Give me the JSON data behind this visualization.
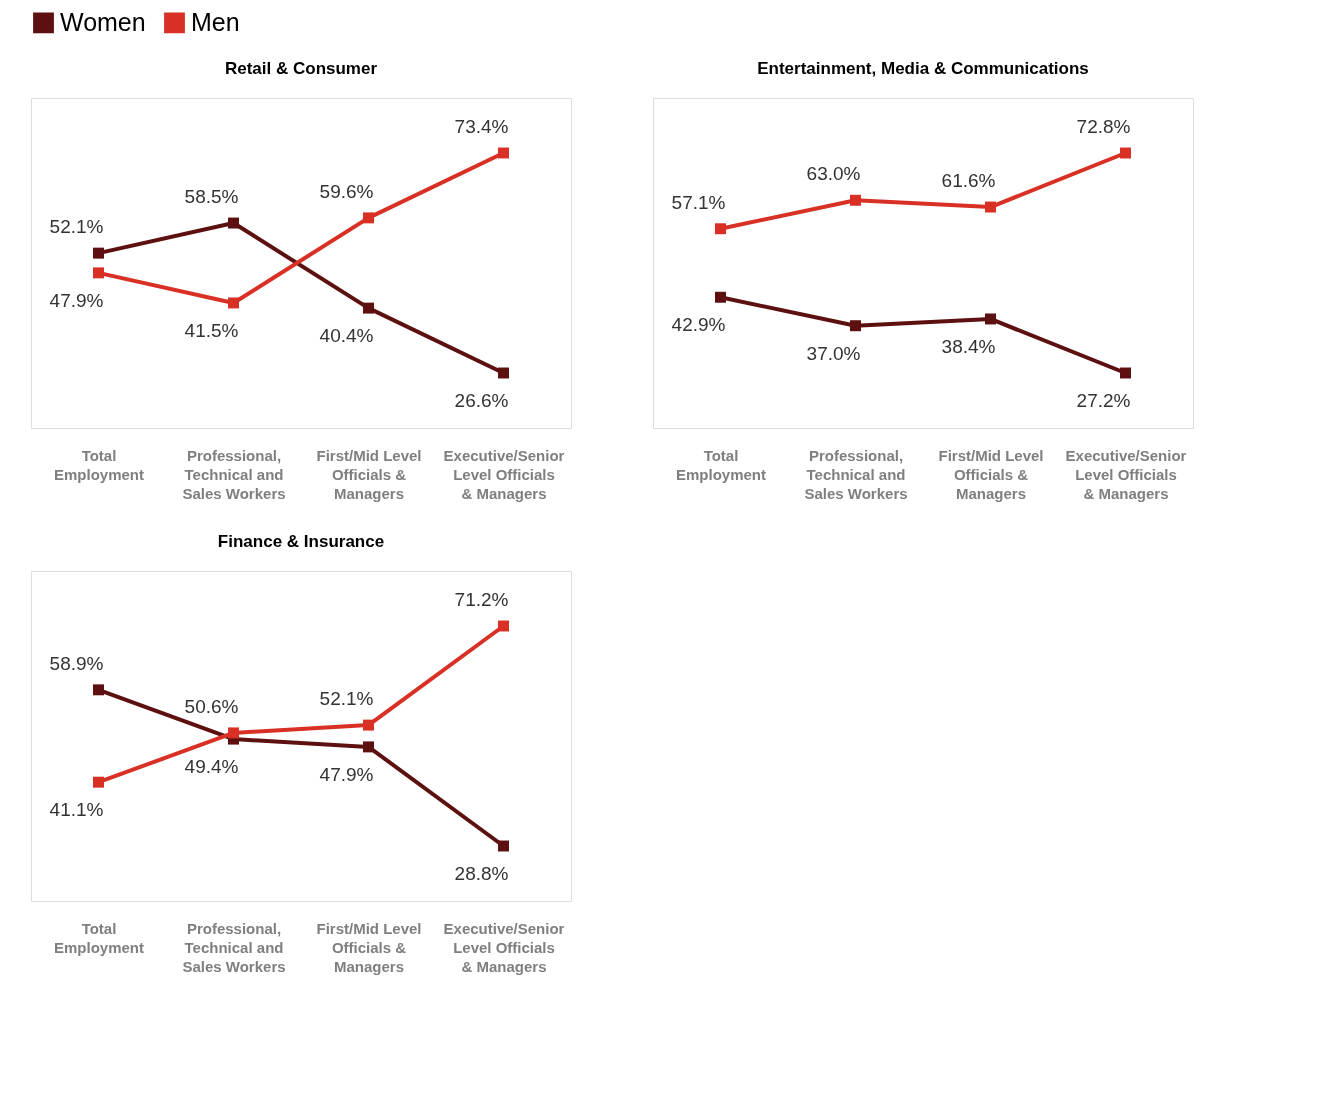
{
  "chart_data": [
    {
      "type": "line",
      "title": "Retail & Consumer",
      "categories": [
        "Total Employment",
        "Professional, Technical and Sales Workers",
        "First/Mid Level Officials & Managers",
        "Executive/Senior Level Officials & Managers"
      ],
      "series": [
        {
          "name": "Women",
          "color": "#5c1010",
          "values": [
            52.1,
            58.5,
            40.4,
            26.6
          ],
          "value_labels": [
            "52.1%",
            "58.5%",
            "40.4%",
            "26.6%"
          ]
        },
        {
          "name": "Men",
          "color": "#d93025",
          "values": [
            47.9,
            41.5,
            59.6,
            73.4
          ],
          "value_labels": [
            "47.9%",
            "41.5%",
            "59.6%",
            "73.4%"
          ]
        }
      ],
      "tick_labels": "x",
      "marker": "square",
      "legend": "top",
      "grid": false
    },
    {
      "type": "line",
      "title": "Entertainment, Media & Communications",
      "categories": [
        "Total Employment",
        "Professional, Technical and Sales Workers",
        "First/Mid Level Officials & Managers",
        "Executive/Senior Level Officials & Managers"
      ],
      "series": [
        {
          "name": "Women",
          "color": "#5c1010",
          "values": [
            42.9,
            37.0,
            38.4,
            27.2
          ],
          "value_labels": [
            "42.9%",
            "37.0%",
            "38.4%",
            "27.2%"
          ]
        },
        {
          "name": "Men",
          "color": "#d93025",
          "values": [
            57.1,
            63.0,
            61.6,
            72.8
          ],
          "value_labels": [
            "57.1%",
            "63.0%",
            "61.6%",
            "72.8%"
          ]
        }
      ],
      "tick_labels": "x",
      "marker": "square",
      "legend": "top",
      "grid": false
    },
    {
      "type": "line",
      "title": "Finance & Insurance",
      "categories": [
        "Total Employment",
        "Professional, Technical and Sales Workers",
        "First/Mid Level Officials & Managers",
        "Executive/Senior Level Officials & Managers"
      ],
      "series": [
        {
          "name": "Women",
          "color": "#5c1010",
          "values": [
            58.9,
            49.4,
            47.9,
            28.8
          ],
          "value_labels": [
            "58.9%",
            "49.4%",
            "47.9%",
            "28.8%"
          ]
        },
        {
          "name": "Men",
          "color": "#d93025",
          "values": [
            41.1,
            50.6,
            52.1,
            71.2
          ],
          "value_labels": [
            "41.1%",
            "50.6%",
            "52.1%",
            "71.2%"
          ]
        }
      ],
      "tick_labels": "x",
      "marker": "square",
      "legend": "top",
      "grid": false
    }
  ]
}
